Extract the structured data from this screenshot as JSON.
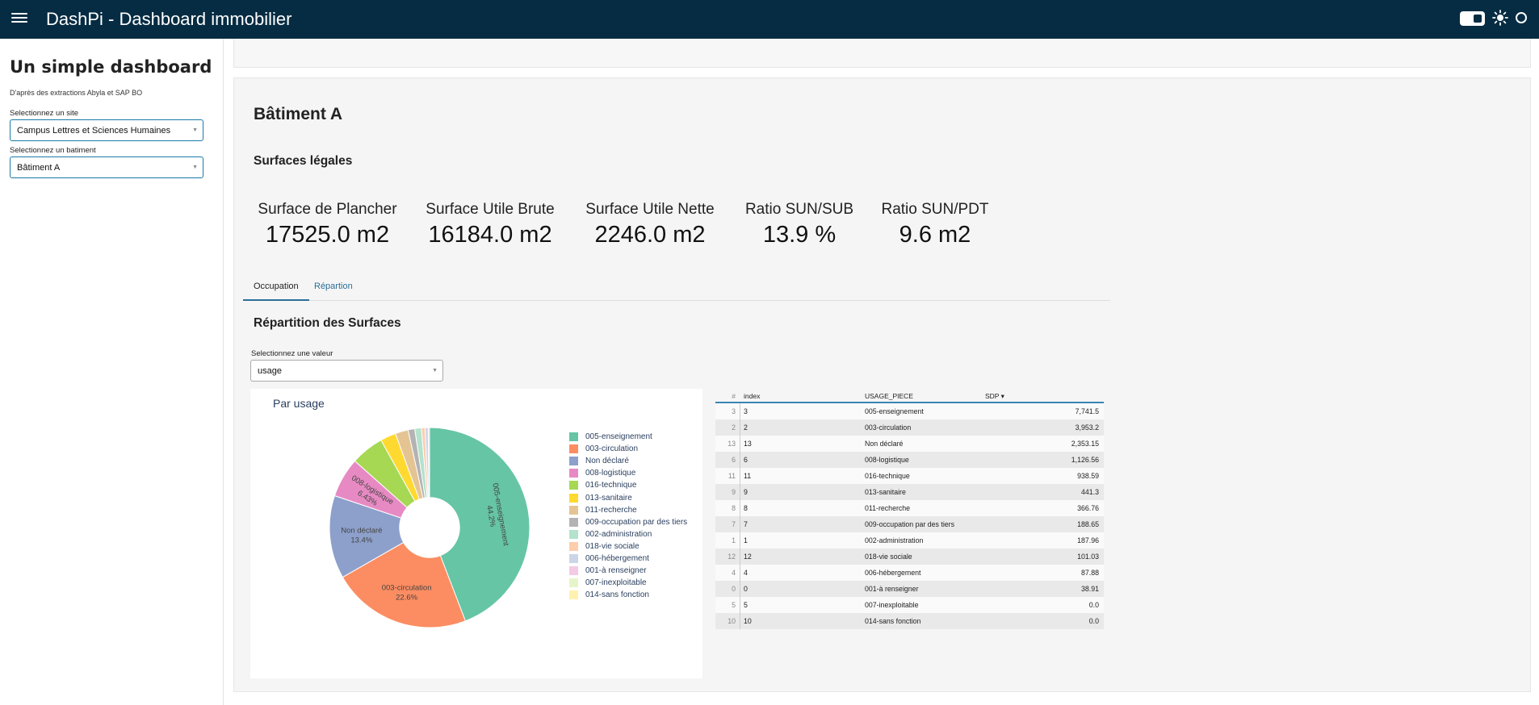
{
  "app": {
    "title": "DashPi  -  Dashboard immobilier"
  },
  "sidebar": {
    "title": "Un simple dashboard",
    "subtitle": "D'après des extractions Abyla et SAP BO",
    "site_label": "Selectionnez un site",
    "site_value": "Campus Lettres et Sciences Humaines",
    "batiment_label": "Selectionnez un batiment",
    "batiment_value": "Bâtiment A"
  },
  "main": {
    "batiment_title": "Bâtiment A",
    "surfaces_title": "Surfaces légales",
    "metrics": [
      {
        "label": "Surface de Plancher",
        "value": "17525.0 m2"
      },
      {
        "label": "Surface Utile Brute",
        "value": "16184.0 m2"
      },
      {
        "label": "Surface Utile Nette",
        "value": "2246.0 m2"
      },
      {
        "label": "Ratio SUN/SUB",
        "value": "13.9 %"
      },
      {
        "label": "Ratio SUN/PDT",
        "value": "9.6 m2"
      }
    ],
    "tabs": [
      {
        "label": "Occupation"
      },
      {
        "label": "Répartion"
      }
    ],
    "repartition_title": "Répartition des Surfaces",
    "valeur_label": "Selectionnez une valeur",
    "valeur_value": "usage"
  },
  "chart_data": {
    "type": "pie",
    "title": "Par usage",
    "hole": 0.3,
    "labels": [
      "005-enseignement",
      "003-circulation",
      "Non déclaré",
      "008-logistique",
      "016-technique",
      "013-sanitaire",
      "011-recherche",
      "009-occupation par des tiers",
      "002-administration",
      "018-vie sociale",
      "006-hébergement",
      "001-à renseigner",
      "007-inexploitable",
      "014-sans fonction"
    ],
    "values": [
      7741.5,
      3953.2,
      2353.15,
      1126.56,
      938.59,
      441.3,
      366.76,
      188.65,
      187.96,
      101.03,
      87.88,
      38.91,
      0.0,
      0.0
    ],
    "colors": [
      "#66c5a5",
      "#fc8d62",
      "#8da0cb",
      "#e78ac3",
      "#a6d854",
      "#ffd92f",
      "#e5c494",
      "#b3b3b3",
      "#b3e2cd",
      "#fdcdac",
      "#cbd5e8",
      "#f4cae4",
      "#e6f5c9",
      "#fff2ae"
    ],
    "slice_labels": [
      {
        "label": "005-enseignement",
        "pct": "44.2%"
      },
      {
        "label": "003-circulation",
        "pct": "22.6%"
      },
      {
        "label": "Non déclaré",
        "pct": "13.4%"
      },
      {
        "label": "008-logistique",
        "pct": "6.43%"
      }
    ]
  },
  "table": {
    "headers": {
      "num": "#",
      "index": "index",
      "usage": "USAGE_PIECE",
      "sdp": "SDP ▾"
    },
    "rows": [
      {
        "num": "3",
        "index": "3",
        "usage": "005-enseignement",
        "sdp": "7,741.5"
      },
      {
        "num": "2",
        "index": "2",
        "usage": "003-circulation",
        "sdp": "3,953.2"
      },
      {
        "num": "13",
        "index": "13",
        "usage": "Non déclaré",
        "sdp": "2,353.15"
      },
      {
        "num": "6",
        "index": "6",
        "usage": "008-logistique",
        "sdp": "1,126.56"
      },
      {
        "num": "11",
        "index": "11",
        "usage": "016-technique",
        "sdp": "938.59"
      },
      {
        "num": "9",
        "index": "9",
        "usage": "013-sanitaire",
        "sdp": "441.3"
      },
      {
        "num": "8",
        "index": "8",
        "usage": "011-recherche",
        "sdp": "366.76"
      },
      {
        "num": "7",
        "index": "7",
        "usage": "009-occupation par des tiers",
        "sdp": "188.65"
      },
      {
        "num": "1",
        "index": "1",
        "usage": "002-administration",
        "sdp": "187.96"
      },
      {
        "num": "12",
        "index": "12",
        "usage": "018-vie sociale",
        "sdp": "101.03"
      },
      {
        "num": "4",
        "index": "4",
        "usage": "006-hébergement",
        "sdp": "87.88"
      },
      {
        "num": "0",
        "index": "0",
        "usage": "001-à renseigner",
        "sdp": "38.91"
      },
      {
        "num": "5",
        "index": "5",
        "usage": "007-inexploitable",
        "sdp": "0.0"
      },
      {
        "num": "10",
        "index": "10",
        "usage": "014-sans fonction",
        "sdp": "0.0"
      }
    ]
  }
}
